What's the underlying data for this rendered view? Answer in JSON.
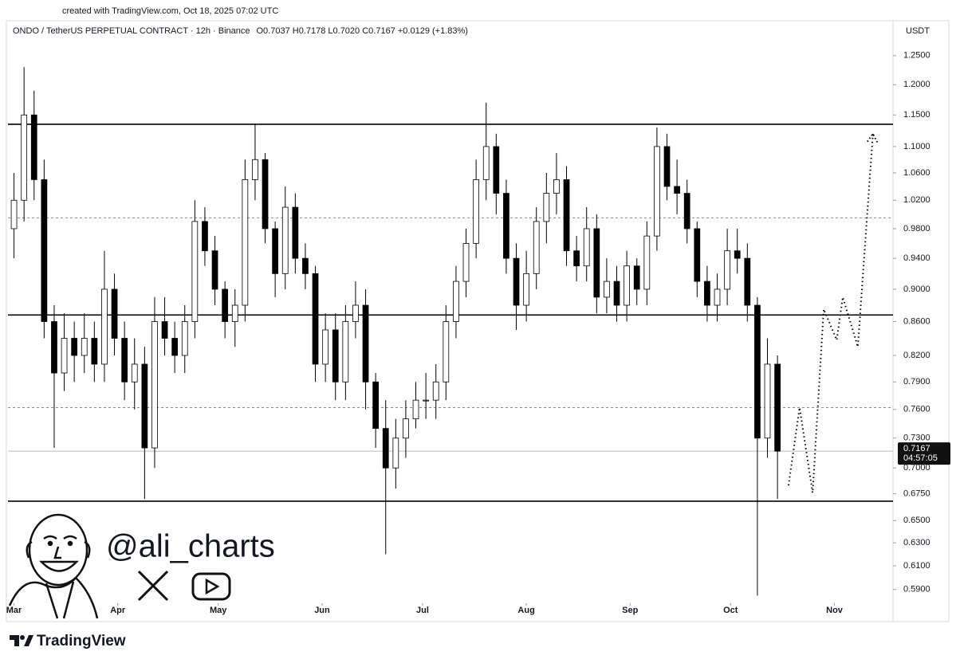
{
  "header": {
    "created": "created with TradingView.com, Oct 18, 2025 07:02 UTC"
  },
  "chart_data": {
    "type": "candlestick",
    "title": "ONDO / TetherUS PERPETUAL CONTRACT · 12h · Binance",
    "subtitle": "O0.7037 H0.7178 L0.7020 C0.7167 +0.0129 (+1.83%)",
    "currency": "USDT",
    "log_scale": true,
    "color_up": "#ffffff",
    "color_down": "#000000",
    "xlim": [
      -0.6,
      87.5
    ],
    "xticks": [
      {
        "value": 0,
        "label": "Mar"
      },
      {
        "value": 10.33,
        "label": "Apr"
      },
      {
        "value": 20.33,
        "label": "May"
      },
      {
        "value": 30.67,
        "label": "Jun"
      },
      {
        "value": 40.67,
        "label": "Jul"
      },
      {
        "value": 51,
        "label": "Aug"
      },
      {
        "value": 61.33,
        "label": "Sep"
      },
      {
        "value": 71.33,
        "label": "Oct"
      },
      {
        "value": 81.67,
        "label": "Nov"
      }
    ],
    "ylim": [
      0.58,
      1.31
    ],
    "yticks": [
      {
        "value": 1.25,
        "label": "1.2500"
      },
      {
        "value": 1.2,
        "label": "1.2000"
      },
      {
        "value": 1.15,
        "label": "1.1500"
      },
      {
        "value": 1.1,
        "label": "1.1000"
      },
      {
        "value": 1.06,
        "label": "1.0600"
      },
      {
        "value": 1.02,
        "label": "1.0200"
      },
      {
        "value": 0.98,
        "label": "0.9800"
      },
      {
        "value": 0.94,
        "label": "0.9400"
      },
      {
        "value": 0.9,
        "label": "0.9000"
      },
      {
        "value": 0.86,
        "label": "0.8600"
      },
      {
        "value": 0.82,
        "label": "0.8200"
      },
      {
        "value": 0.79,
        "label": "0.7900"
      },
      {
        "value": 0.76,
        "label": "0.7600"
      },
      {
        "value": 0.73,
        "label": "0.7300"
      },
      {
        "value": 0.7,
        "label": "0.7000"
      },
      {
        "value": 0.675,
        "label": "0.6750"
      },
      {
        "value": 0.65,
        "label": "0.6500"
      },
      {
        "value": 0.63,
        "label": "0.6300"
      },
      {
        "value": 0.61,
        "label": "0.6100"
      },
      {
        "value": 0.59,
        "label": "0.5900"
      }
    ],
    "open": [
      0.98,
      1.02,
      1.15,
      1.05,
      0.86,
      0.8,
      0.84,
      0.82,
      0.84,
      0.81,
      0.9,
      0.84,
      0.79,
      0.81,
      0.72,
      0.86,
      0.84,
      0.82,
      0.86,
      0.99,
      0.95,
      0.9,
      0.86,
      0.88,
      1.05,
      1.08,
      0.98,
      0.92,
      1.01,
      0.94,
      0.92,
      0.81,
      0.85,
      0.79,
      0.86,
      0.88,
      0.79,
      0.74,
      0.7,
      0.73,
      0.75,
      0.77,
      0.77,
      0.79,
      0.86,
      0.91,
      0.96,
      1.05,
      1.1,
      1.03,
      0.94,
      0.88,
      0.92,
      0.99,
      1.03,
      1.05,
      0.95,
      0.93,
      0.98,
      0.89,
      0.91,
      0.88,
      0.93,
      0.9,
      0.97,
      1.1,
      1.04,
      1.03,
      0.98,
      0.91,
      0.88,
      0.9,
      0.95,
      0.94,
      0.88,
      0.73,
      0.81
    ],
    "high": [
      1.06,
      1.23,
      1.19,
      1.08,
      0.88,
      0.87,
      0.86,
      0.87,
      0.86,
      0.95,
      0.92,
      0.86,
      0.84,
      0.83,
      0.89,
      0.89,
      0.86,
      0.88,
      1.02,
      1.01,
      0.97,
      0.91,
      0.9,
      1.08,
      1.135,
      1.09,
      0.99,
      1.04,
      1.03,
      0.96,
      0.93,
      0.87,
      0.87,
      0.88,
      0.91,
      0.9,
      0.8,
      0.77,
      0.75,
      0.77,
      0.79,
      0.8,
      0.81,
      0.88,
      0.93,
      0.98,
      1.08,
      1.17,
      1.12,
      1.05,
      0.96,
      0.95,
      1.01,
      1.06,
      1.09,
      1.07,
      0.97,
      1.01,
      1.0,
      0.94,
      0.93,
      0.95,
      0.94,
      0.99,
      1.13,
      1.12,
      1.08,
      1.05,
      0.99,
      0.93,
      0.92,
      0.98,
      0.98,
      0.96,
      0.89,
      0.84,
      0.82
    ],
    "low": [
      0.94,
      0.99,
      1.02,
      0.84,
      0.72,
      0.78,
      0.79,
      0.8,
      0.79,
      0.79,
      0.82,
      0.77,
      0.76,
      0.67,
      0.7,
      0.82,
      0.8,
      0.8,
      0.84,
      0.93,
      0.88,
      0.84,
      0.83,
      0.86,
      1.02,
      0.96,
      0.89,
      0.9,
      0.92,
      0.9,
      0.79,
      0.79,
      0.77,
      0.77,
      0.84,
      0.76,
      0.72,
      0.62,
      0.68,
      0.71,
      0.74,
      0.75,
      0.75,
      0.77,
      0.84,
      0.89,
      0.94,
      1.02,
      1.0,
      0.92,
      0.85,
      0.86,
      0.9,
      0.96,
      1.0,
      0.93,
      0.91,
      0.91,
      0.87,
      0.87,
      0.86,
      0.86,
      0.88,
      0.88,
      0.95,
      1.02,
      1.0,
      0.96,
      0.89,
      0.86,
      0.86,
      0.88,
      0.92,
      0.86,
      0.585,
      0.71,
      0.67
    ],
    "close": [
      1.02,
      1.15,
      1.05,
      0.86,
      0.8,
      0.84,
      0.82,
      0.84,
      0.81,
      0.9,
      0.84,
      0.79,
      0.81,
      0.72,
      0.86,
      0.84,
      0.82,
      0.86,
      0.99,
      0.95,
      0.9,
      0.86,
      0.88,
      1.05,
      1.08,
      0.98,
      0.92,
      1.01,
      0.94,
      0.92,
      0.81,
      0.85,
      0.79,
      0.86,
      0.88,
      0.79,
      0.74,
      0.7,
      0.73,
      0.75,
      0.77,
      0.77,
      0.79,
      0.86,
      0.91,
      0.96,
      1.05,
      1.1,
      1.03,
      0.94,
      0.88,
      0.92,
      0.99,
      1.03,
      1.05,
      0.95,
      0.93,
      0.98,
      0.89,
      0.91,
      0.88,
      0.93,
      0.9,
      0.97,
      1.1,
      1.04,
      1.03,
      0.98,
      0.91,
      0.88,
      0.9,
      0.95,
      0.94,
      0.88,
      0.73,
      0.81,
      0.7167
    ],
    "levels": [
      {
        "value": 1.135,
        "style": "solid"
      },
      {
        "value": 0.995,
        "style": "dotted"
      },
      {
        "value": 0.868,
        "style": "solid"
      },
      {
        "value": 0.762,
        "style": "dotted"
      },
      {
        "value": 0.668,
        "style": "solid"
      }
    ],
    "last_price": 0.7167,
    "countdown": "04:57:05",
    "projection": {
      "x": [
        77.1,
        78.2,
        79.5,
        80.6,
        81.9,
        82.5,
        84.0,
        85.5
      ],
      "y": [
        0.683,
        0.762,
        0.676,
        0.875,
        0.838,
        0.89,
        0.83,
        1.12
      ]
    }
  },
  "watermark": {
    "handle": "@ali_charts"
  },
  "footer": {
    "brand": "TradingView"
  }
}
